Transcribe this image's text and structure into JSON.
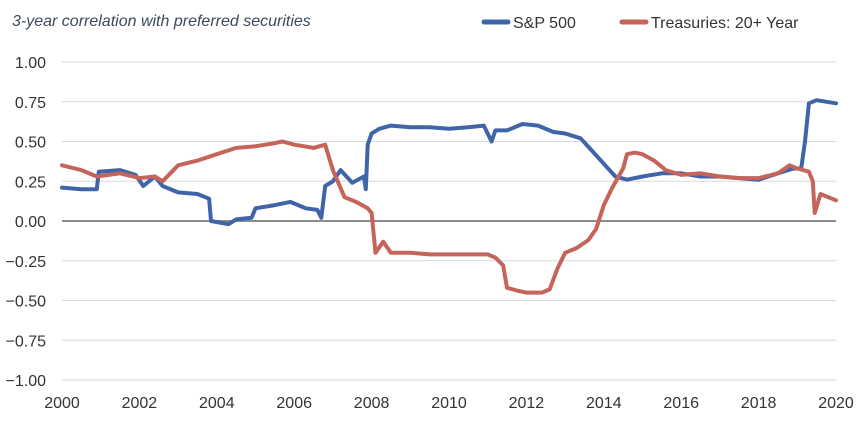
{
  "chart_data": {
    "type": "line",
    "title": "3-year correlation with preferred securities",
    "xlabel": "",
    "ylabel": "",
    "xlim": [
      2000,
      2020
    ],
    "ylim": [
      -1.0,
      1.0
    ],
    "x_ticks": [
      "2000",
      "2002",
      "2004",
      "2006",
      "2008",
      "2010",
      "2012",
      "2014",
      "2016",
      "2018",
      "2020"
    ],
    "y_ticks": [
      "1.00",
      "0.75",
      "0.50",
      "0.25",
      "0.00",
      "−0.25",
      "−0.50",
      "−0.75",
      "−1.00"
    ],
    "y_tick_values": [
      1.0,
      0.75,
      0.5,
      0.25,
      0.0,
      -0.25,
      -0.5,
      -0.75,
      -1.0
    ],
    "grid": "horizontal",
    "legend_position": "top-right",
    "series": [
      {
        "name": "S&P 500",
        "color": "#3f64a8",
        "x": [
          2000.0,
          2000.5,
          2000.9,
          2000.95,
          2001.5,
          2001.9,
          2002.1,
          2002.4,
          2002.6,
          2003.0,
          2003.5,
          2003.8,
          2003.85,
          2004.3,
          2004.5,
          2004.9,
          2005.0,
          2005.5,
          2005.9,
          2006.3,
          2006.6,
          2006.7,
          2006.8,
          2007.0,
          2007.2,
          2007.5,
          2007.8,
          2007.85,
          2007.9,
          2008.0,
          2008.2,
          2008.5,
          2009.0,
          2009.5,
          2010.0,
          2010.5,
          2010.9,
          2011.1,
          2011.2,
          2011.5,
          2011.9,
          2012.3,
          2012.7,
          2013.0,
          2013.4,
          2013.7,
          2014.0,
          2014.3,
          2014.6,
          2015.0,
          2015.5,
          2016.0,
          2016.5,
          2017.0,
          2017.5,
          2018.0,
          2018.5,
          2018.9,
          2019.1,
          2019.2,
          2019.3,
          2019.5,
          2020.0
        ],
        "values": [
          0.21,
          0.2,
          0.2,
          0.31,
          0.32,
          0.29,
          0.22,
          0.28,
          0.22,
          0.18,
          0.17,
          0.14,
          0.0,
          -0.02,
          0.01,
          0.02,
          0.08,
          0.1,
          0.12,
          0.08,
          0.07,
          0.02,
          0.22,
          0.25,
          0.32,
          0.24,
          0.28,
          0.2,
          0.48,
          0.55,
          0.58,
          0.6,
          0.59,
          0.59,
          0.58,
          0.59,
          0.6,
          0.5,
          0.57,
          0.57,
          0.61,
          0.6,
          0.56,
          0.55,
          0.52,
          0.44,
          0.36,
          0.28,
          0.26,
          0.28,
          0.3,
          0.3,
          0.28,
          0.28,
          0.27,
          0.26,
          0.3,
          0.33,
          0.33,
          0.5,
          0.74,
          0.76,
          0.74
        ]
      },
      {
        "name": "Treasuries: 20+ Year",
        "color": "#c4645a",
        "x": [
          2000.0,
          2000.5,
          2000.9,
          2001.5,
          2002.0,
          2002.4,
          2002.6,
          2003.0,
          2003.5,
          2004.0,
          2004.5,
          2005.0,
          2005.5,
          2005.7,
          2006.0,
          2006.5,
          2006.8,
          2006.9,
          2007.0,
          2007.3,
          2007.6,
          2007.9,
          2008.0,
          2008.1,
          2008.3,
          2008.5,
          2009.0,
          2009.5,
          2010.0,
          2010.5,
          2011.0,
          2011.2,
          2011.4,
          2011.5,
          2011.8,
          2012.0,
          2012.4,
          2012.6,
          2012.8,
          2013.0,
          2013.3,
          2013.6,
          2013.8,
          2014.0,
          2014.2,
          2014.5,
          2014.6,
          2014.8,
          2015.0,
          2015.3,
          2015.6,
          2016.0,
          2016.5,
          2017.0,
          2017.5,
          2018.0,
          2018.5,
          2018.8,
          2019.0,
          2019.3,
          2019.4,
          2019.45,
          2019.6,
          2020.0
        ],
        "values": [
          0.35,
          0.32,
          0.28,
          0.3,
          0.27,
          0.28,
          0.25,
          0.35,
          0.38,
          0.42,
          0.46,
          0.47,
          0.49,
          0.5,
          0.48,
          0.46,
          0.48,
          0.4,
          0.32,
          0.15,
          0.12,
          0.08,
          0.05,
          -0.2,
          -0.13,
          -0.2,
          -0.2,
          -0.21,
          -0.21,
          -0.21,
          -0.21,
          -0.23,
          -0.28,
          -0.42,
          -0.44,
          -0.45,
          -0.45,
          -0.43,
          -0.3,
          -0.2,
          -0.17,
          -0.12,
          -0.05,
          0.1,
          0.2,
          0.33,
          0.42,
          0.43,
          0.42,
          0.38,
          0.32,
          0.29,
          0.3,
          0.28,
          0.27,
          0.27,
          0.3,
          0.35,
          0.33,
          0.31,
          0.25,
          0.05,
          0.17,
          0.13
        ]
      }
    ]
  }
}
